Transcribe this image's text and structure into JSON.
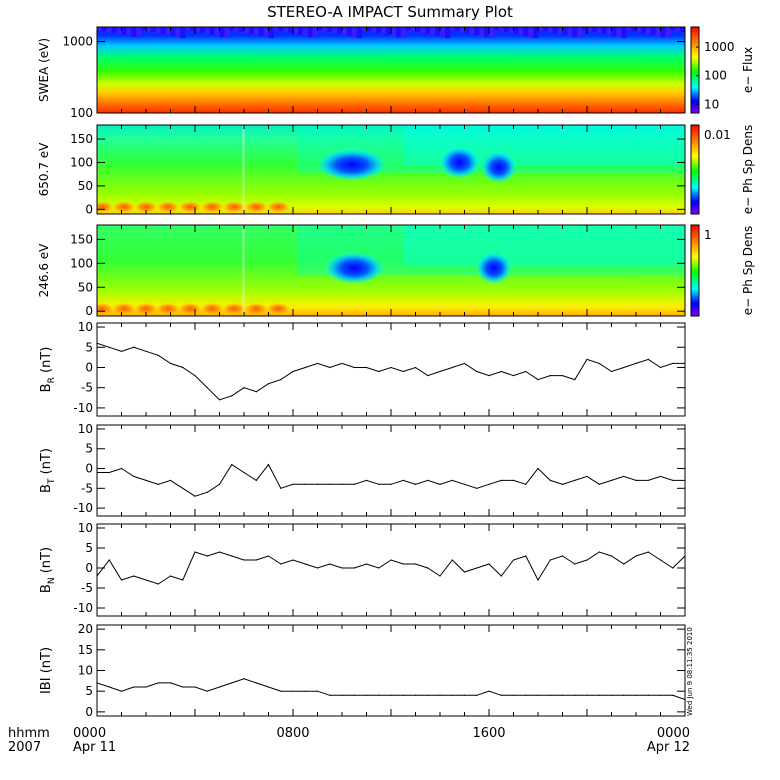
{
  "title": "STEREO-A IMPACT Summary Plot",
  "timestamp": "Wed Jun  9 08:11:35 2010",
  "x_axis": {
    "row1_label": "hhmm",
    "row2_label": "2007",
    "ticks": [
      {
        "hour": 0,
        "label": "0000",
        "sublabel": "Apr 11"
      },
      {
        "hour": 8,
        "label": "0800",
        "sublabel": ""
      },
      {
        "hour": 16,
        "label": "1600",
        "sublabel": ""
      },
      {
        "hour": 24,
        "label": "0000",
        "sublabel": "Apr 12"
      }
    ]
  },
  "colorbar_colors": [
    "#ff0000",
    "#ff8000",
    "#ffff00",
    "#00ff00",
    "#00ffff",
    "#0000ff",
    "#8000ff"
  ],
  "chart_data": [
    {
      "type": "heatmap",
      "ylabel": "SWEA (eV)",
      "yscale": "log",
      "ylim": [
        100,
        1600
      ],
      "yticks": [
        100,
        1000
      ],
      "ytick_labels": [
        "100",
        "1000"
      ],
      "colorbar": {
        "label": "e− Flux",
        "scale": "log",
        "ticks": [
          10,
          100,
          1000
        ],
        "tick_labels": [
          "10",
          "100",
          "1000"
        ],
        "range": [
          5,
          5000
        ]
      },
      "description": "electron flux decreasing with energy; highest (red) near 100 eV, lowest (blue) near 1600 eV"
    },
    {
      "type": "heatmap",
      "ylabel": "650.7 eV",
      "ylim": [
        -10,
        180
      ],
      "yticks": [
        0,
        50,
        100,
        150
      ],
      "colorbar": {
        "label": "e− Ph Sp Dens",
        "ticks": [
          0.01
        ],
        "tick_labels": [
          "0.01"
        ]
      },
      "blobs": [
        {
          "hour_start": 9.3,
          "hour_end": 11.5,
          "pitch_angle": 95,
          "level": "low"
        },
        {
          "hour_start": 14.3,
          "hour_end": 15.3,
          "pitch_angle": 100,
          "level": "low"
        },
        {
          "hour_start": 16.0,
          "hour_end": 16.8,
          "pitch_angle": 90,
          "level": "low"
        }
      ]
    },
    {
      "type": "heatmap",
      "ylabel": "246.6 eV",
      "ylim": [
        -10,
        180
      ],
      "yticks": [
        0,
        50,
        100,
        150
      ],
      "colorbar": {
        "label": "e− Ph Sp Dens",
        "ticks": [
          1
        ],
        "tick_labels": [
          "1"
        ]
      },
      "blobs": [
        {
          "hour_start": 9.6,
          "hour_end": 11.4,
          "pitch_angle": 90,
          "level": "low"
        },
        {
          "hour_start": 15.8,
          "hour_end": 16.6,
          "pitch_angle": 90,
          "level": "low"
        }
      ]
    },
    {
      "type": "line",
      "ylabel": "B_R (nT)",
      "ylabel_main": "B",
      "ylabel_sub": "R",
      "ylabel_unit": "(nT)",
      "ylim": [
        -12,
        11
      ],
      "yticks": [
        -10,
        -5,
        0,
        5,
        10
      ],
      "x_hours": [
        0,
        0.5,
        1,
        1.5,
        2,
        2.5,
        3,
        3.5,
        4,
        4.5,
        5,
        5.5,
        6,
        6.5,
        7,
        7.5,
        8,
        8.5,
        9,
        9.5,
        10,
        10.5,
        11,
        11.5,
        12,
        12.5,
        13,
        13.5,
        14,
        14.5,
        15,
        15.5,
        16,
        16.5,
        17,
        17.5,
        18,
        18.5,
        19,
        19.5,
        20,
        20.5,
        21,
        21.5,
        22,
        22.5,
        23,
        23.5,
        24
      ],
      "values": [
        6,
        5,
        4,
        5,
        4,
        3,
        1,
        0,
        -2,
        -5,
        -8,
        -7,
        -5,
        -6,
        -4,
        -3,
        -1,
        0,
        1,
        0,
        1,
        0,
        0,
        -1,
        0,
        -1,
        0,
        -2,
        -1,
        0,
        1,
        -1,
        -2,
        -1,
        -2,
        -1,
        -3,
        -2,
        -2,
        -3,
        2,
        1,
        -1,
        0,
        1,
        2,
        0,
        1,
        1
      ]
    },
    {
      "type": "line",
      "ylabel": "B_T (nT)",
      "ylabel_main": "B",
      "ylabel_sub": "T",
      "ylabel_unit": "(nT)",
      "ylim": [
        -12,
        11
      ],
      "yticks": [
        -10,
        -5,
        0,
        5,
        10
      ],
      "x_hours": [
        0,
        0.5,
        1,
        1.5,
        2,
        2.5,
        3,
        3.5,
        4,
        4.5,
        5,
        5.5,
        6,
        6.5,
        7,
        7.5,
        8,
        8.5,
        9,
        9.5,
        10,
        10.5,
        11,
        11.5,
        12,
        12.5,
        13,
        13.5,
        14,
        14.5,
        15,
        15.5,
        16,
        16.5,
        17,
        17.5,
        18,
        18.5,
        19,
        19.5,
        20,
        20.5,
        21,
        21.5,
        22,
        22.5,
        23,
        23.5,
        24
      ],
      "values": [
        -1,
        -1,
        0,
        -2,
        -3,
        -4,
        -3,
        -5,
        -7,
        -6,
        -4,
        1,
        -1,
        -3,
        1,
        -5,
        -4,
        -4,
        -4,
        -4,
        -4,
        -4,
        -3,
        -4,
        -4,
        -3,
        -4,
        -3,
        -4,
        -3,
        -4,
        -5,
        -4,
        -3,
        -3,
        -4,
        0,
        -3,
        -4,
        -3,
        -2,
        -4,
        -3,
        -2,
        -3,
        -3,
        -2,
        -3,
        -3
      ]
    },
    {
      "type": "line",
      "ylabel": "B_N (nT)",
      "ylabel_main": "B",
      "ylabel_sub": "N",
      "ylabel_unit": "(nT)",
      "ylim": [
        -12,
        11
      ],
      "yticks": [
        -10,
        -5,
        0,
        5,
        10
      ],
      "x_hours": [
        0,
        0.5,
        1,
        1.5,
        2,
        2.5,
        3,
        3.5,
        4,
        4.5,
        5,
        5.5,
        6,
        6.5,
        7,
        7.5,
        8,
        8.5,
        9,
        9.5,
        10,
        10.5,
        11,
        11.5,
        12,
        12.5,
        13,
        13.5,
        14,
        14.5,
        15,
        15.5,
        16,
        16.5,
        17,
        17.5,
        18,
        18.5,
        19,
        19.5,
        20,
        20.5,
        21,
        21.5,
        22,
        22.5,
        23,
        23.5,
        24
      ],
      "values": [
        -2,
        2,
        -3,
        -2,
        -3,
        -4,
        -2,
        -3,
        4,
        3,
        4,
        3,
        2,
        2,
        3,
        1,
        2,
        1,
        0,
        1,
        0,
        0,
        1,
        0,
        2,
        1,
        1,
        0,
        -2,
        2,
        -1,
        0,
        1,
        -2,
        2,
        3,
        -3,
        2,
        3,
        1,
        2,
        4,
        3,
        1,
        3,
        4,
        2,
        0,
        3
      ]
    },
    {
      "type": "line",
      "ylabel": "|B| (nT)",
      "ylabel_main": "IBI",
      "ylabel_sub": "",
      "ylabel_unit": "(nT)",
      "ylim": [
        -1,
        21
      ],
      "yticks": [
        0,
        5,
        10,
        15,
        20
      ],
      "x_hours": [
        0,
        0.5,
        1,
        1.5,
        2,
        2.5,
        3,
        3.5,
        4,
        4.5,
        5,
        5.5,
        6,
        6.5,
        7,
        7.5,
        8,
        8.5,
        9,
        9.5,
        10,
        10.5,
        11,
        11.5,
        12,
        12.5,
        13,
        13.5,
        14,
        14.5,
        15,
        15.5,
        16,
        16.5,
        17,
        17.5,
        18,
        18.5,
        19,
        19.5,
        20,
        20.5,
        21,
        21.5,
        22,
        22.5,
        23,
        23.5,
        24
      ],
      "values": [
        7,
        6,
        5,
        6,
        6,
        7,
        7,
        6,
        6,
        5,
        6,
        7,
        8,
        7,
        6,
        5,
        5,
        5,
        5,
        4,
        4,
        4,
        4,
        4,
        4,
        4,
        4,
        4,
        4,
        4,
        4,
        4,
        5,
        4,
        4,
        4,
        4,
        4,
        4,
        4,
        4,
        4,
        4,
        4,
        4,
        4,
        4,
        4,
        3
      ]
    }
  ]
}
